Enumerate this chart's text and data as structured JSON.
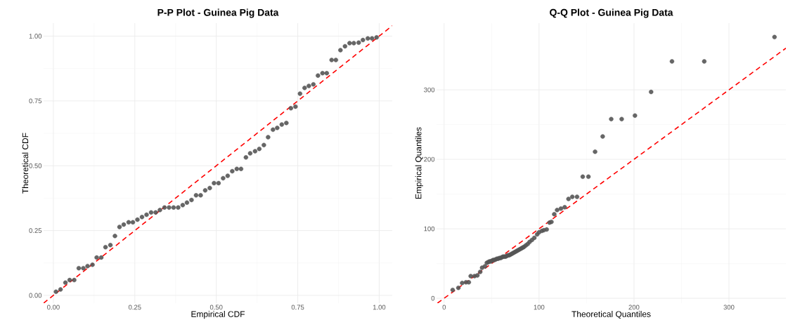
{
  "chart_data": [
    {
      "type": "scatter",
      "title": "P-P Plot - Guinea Pig Data",
      "xlabel": "Empirical CDF",
      "ylabel": "Theoretical CDF",
      "xlim": [
        -0.03,
        1.04
      ],
      "ylim": [
        -0.03,
        1.05
      ],
      "xticks": [
        {
          "value": 0,
          "label": "0.00"
        },
        {
          "value": 0.25,
          "label": "0.25"
        },
        {
          "value": 0.5,
          "label": "0.50"
        },
        {
          "value": 0.75,
          "label": "0.75"
        },
        {
          "value": 1,
          "label": "1.00"
        }
      ],
      "yticks": [
        {
          "value": 0,
          "label": "0.00"
        },
        {
          "value": 0.25,
          "label": "0.25"
        },
        {
          "value": 0.5,
          "label": "0.50"
        },
        {
          "value": 0.75,
          "label": "0.75"
        },
        {
          "value": 1,
          "label": "1.00"
        }
      ],
      "grid": true,
      "series": [
        {
          "color": "#555555",
          "marker": "circle",
          "x": [
            0.008,
            0.022,
            0.037,
            0.05,
            0.064,
            0.078,
            0.092,
            0.105,
            0.12,
            0.133,
            0.147,
            0.16,
            0.175,
            0.189,
            0.203,
            0.216,
            0.231,
            0.244,
            0.258,
            0.272,
            0.286,
            0.3,
            0.314,
            0.327,
            0.341,
            0.355,
            0.369,
            0.383,
            0.397,
            0.41,
            0.424,
            0.438,
            0.452,
            0.466,
            0.48,
            0.493,
            0.507,
            0.521,
            0.535,
            0.549,
            0.563,
            0.576,
            0.591,
            0.604,
            0.619,
            0.632,
            0.646,
            0.659,
            0.674,
            0.687,
            0.701,
            0.715,
            0.729,
            0.743,
            0.757,
            0.771,
            0.784,
            0.798,
            0.812,
            0.826,
            0.839,
            0.854,
            0.867,
            0.881,
            0.895,
            0.909,
            0.922,
            0.937,
            0.95,
            0.965,
            0.978,
            0.992
          ],
          "values": [
            0.014,
            0.023,
            0.049,
            0.059,
            0.059,
            0.105,
            0.105,
            0.113,
            0.118,
            0.146,
            0.146,
            0.186,
            0.194,
            0.229,
            0.264,
            0.273,
            0.282,
            0.282,
            0.292,
            0.302,
            0.311,
            0.32,
            0.32,
            0.329,
            0.339,
            0.339,
            0.339,
            0.339,
            0.348,
            0.358,
            0.368,
            0.386,
            0.386,
            0.405,
            0.414,
            0.433,
            0.433,
            0.452,
            0.461,
            0.479,
            0.488,
            0.488,
            0.532,
            0.548,
            0.556,
            0.565,
            0.58,
            0.61,
            0.639,
            0.646,
            0.659,
            0.665,
            0.722,
            0.728,
            0.778,
            0.8,
            0.808,
            0.814,
            0.848,
            0.857,
            0.857,
            0.908,
            0.908,
            0.946,
            0.961,
            0.973,
            0.973,
            0.975,
            0.985,
            0.991,
            0.991,
            0.995
          ]
        },
        {
          "type": "line",
          "color": "#ff0000",
          "line_style": "dashed",
          "x": [
            -0.03,
            1.04
          ],
          "values": [
            -0.03,
            1.04
          ]
        }
      ]
    },
    {
      "type": "scatter",
      "title": "Q-Q Plot - Guinea Pig Data",
      "xlabel": "Theoretical Quantiles",
      "ylabel": "Empirical Quantiles",
      "xlim": [
        -8,
        360
      ],
      "ylim": [
        -7,
        396
      ],
      "xticks": [
        0,
        100,
        200,
        300
      ],
      "yticks": [
        0,
        100,
        200,
        300
      ],
      "grid": true,
      "series": [
        {
          "color": "#555555",
          "marker": "circle",
          "x": [
            9,
            15,
            19,
            23,
            26,
            28,
            32,
            35,
            38,
            40,
            43,
            45,
            46.5,
            47.8,
            49.1,
            50.4,
            51.7,
            53,
            54.3,
            55.6,
            56.9,
            58.2,
            59.5,
            60.8,
            62.1,
            63.4,
            64.7,
            66,
            67.3,
            68.6,
            69.9,
            71.2,
            72.5,
            73.8,
            75.1,
            76.4,
            77.7,
            79,
            80.3,
            81.6,
            82.9,
            84.2,
            86,
            88,
            90,
            92.5,
            95,
            98,
            100,
            103,
            105,
            108,
            111,
            113,
            116,
            119,
            123,
            127,
            131,
            135,
            140,
            146,
            152,
            159,
            167,
            176,
            187,
            201,
            218,
            240,
            274,
            348
          ],
          "values": [
            12,
            15,
            22,
            23,
            23,
            32,
            32,
            33,
            38,
            44,
            46,
            51,
            52,
            53,
            53,
            54,
            55,
            55,
            56,
            57,
            57,
            58,
            58,
            59,
            60,
            60,
            60,
            61,
            62,
            62,
            63,
            64,
            65,
            66,
            67,
            68,
            69,
            70,
            71,
            72,
            73,
            74,
            76,
            78,
            81,
            84,
            87,
            92,
            95,
            97,
            98,
            99,
            109,
            110,
            121,
            127,
            129,
            131,
            143,
            146,
            146,
            175,
            175,
            211,
            233,
            258,
            258,
            263,
            297,
            341,
            341,
            376
          ]
        },
        {
          "type": "line",
          "color": "#ff0000",
          "line_style": "dashed",
          "x": [
            -7,
            360
          ],
          "values": [
            -7,
            360
          ]
        }
      ]
    }
  ]
}
